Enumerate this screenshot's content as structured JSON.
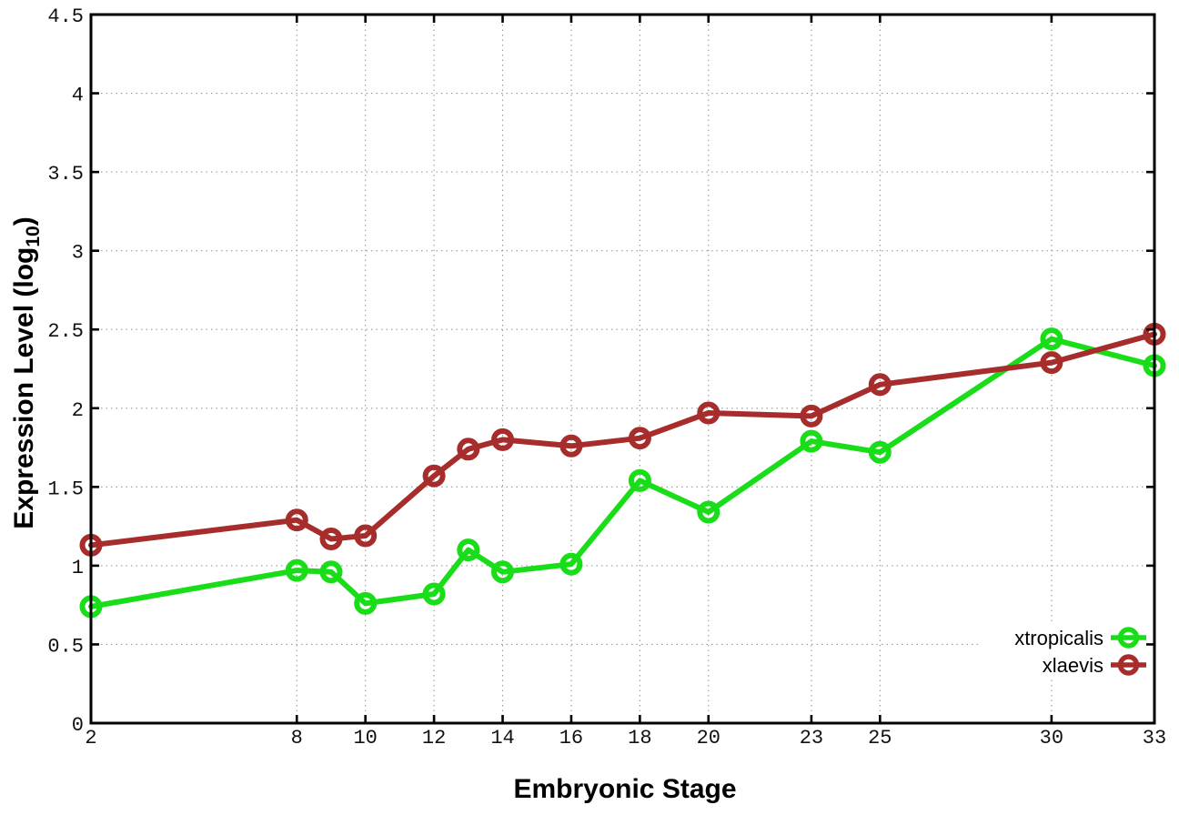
{
  "chart_data": {
    "type": "line",
    "title": "",
    "xlabel": "Embryonic Stage",
    "ylabel": "Expression Level (log10)",
    "ylabel_parts": {
      "pre": "Expression Level (log",
      "sub": "10",
      "post": ")"
    },
    "x": [
      2,
      8,
      9,
      10,
      12,
      13,
      14,
      16,
      18,
      20,
      23,
      25,
      30,
      33
    ],
    "xticks": [
      2,
      8,
      10,
      12,
      14,
      16,
      18,
      20,
      23,
      25,
      30,
      33
    ],
    "yticks": [
      0,
      0.5,
      1,
      1.5,
      2,
      2.5,
      3,
      3.5,
      4,
      4.5
    ],
    "xlim": [
      2,
      33
    ],
    "ylim": [
      0,
      4.5
    ],
    "grid": true,
    "grid_style": "dotted",
    "marker": "open-circle",
    "legend_position": "inside-bottom-right",
    "series": [
      {
        "name": "xtropicalis",
        "color": "#18dd18",
        "values": [
          0.74,
          0.97,
          0.96,
          0.76,
          0.82,
          1.1,
          0.96,
          1.01,
          1.54,
          1.34,
          1.79,
          1.72,
          2.44,
          2.27
        ]
      },
      {
        "name": "xlaevis",
        "color": "#a72c2c",
        "values": [
          1.13,
          1.29,
          1.17,
          1.19,
          1.57,
          1.74,
          1.8,
          1.76,
          1.81,
          1.97,
          1.95,
          2.15,
          2.29,
          2.47
        ]
      }
    ]
  },
  "colors": {
    "background": "#ffffff",
    "plot_border": "#000000",
    "grid": "#9a9a9a",
    "tick_label": "#111111",
    "axis_label": "#000000",
    "legend_background": "#ffffff"
  }
}
